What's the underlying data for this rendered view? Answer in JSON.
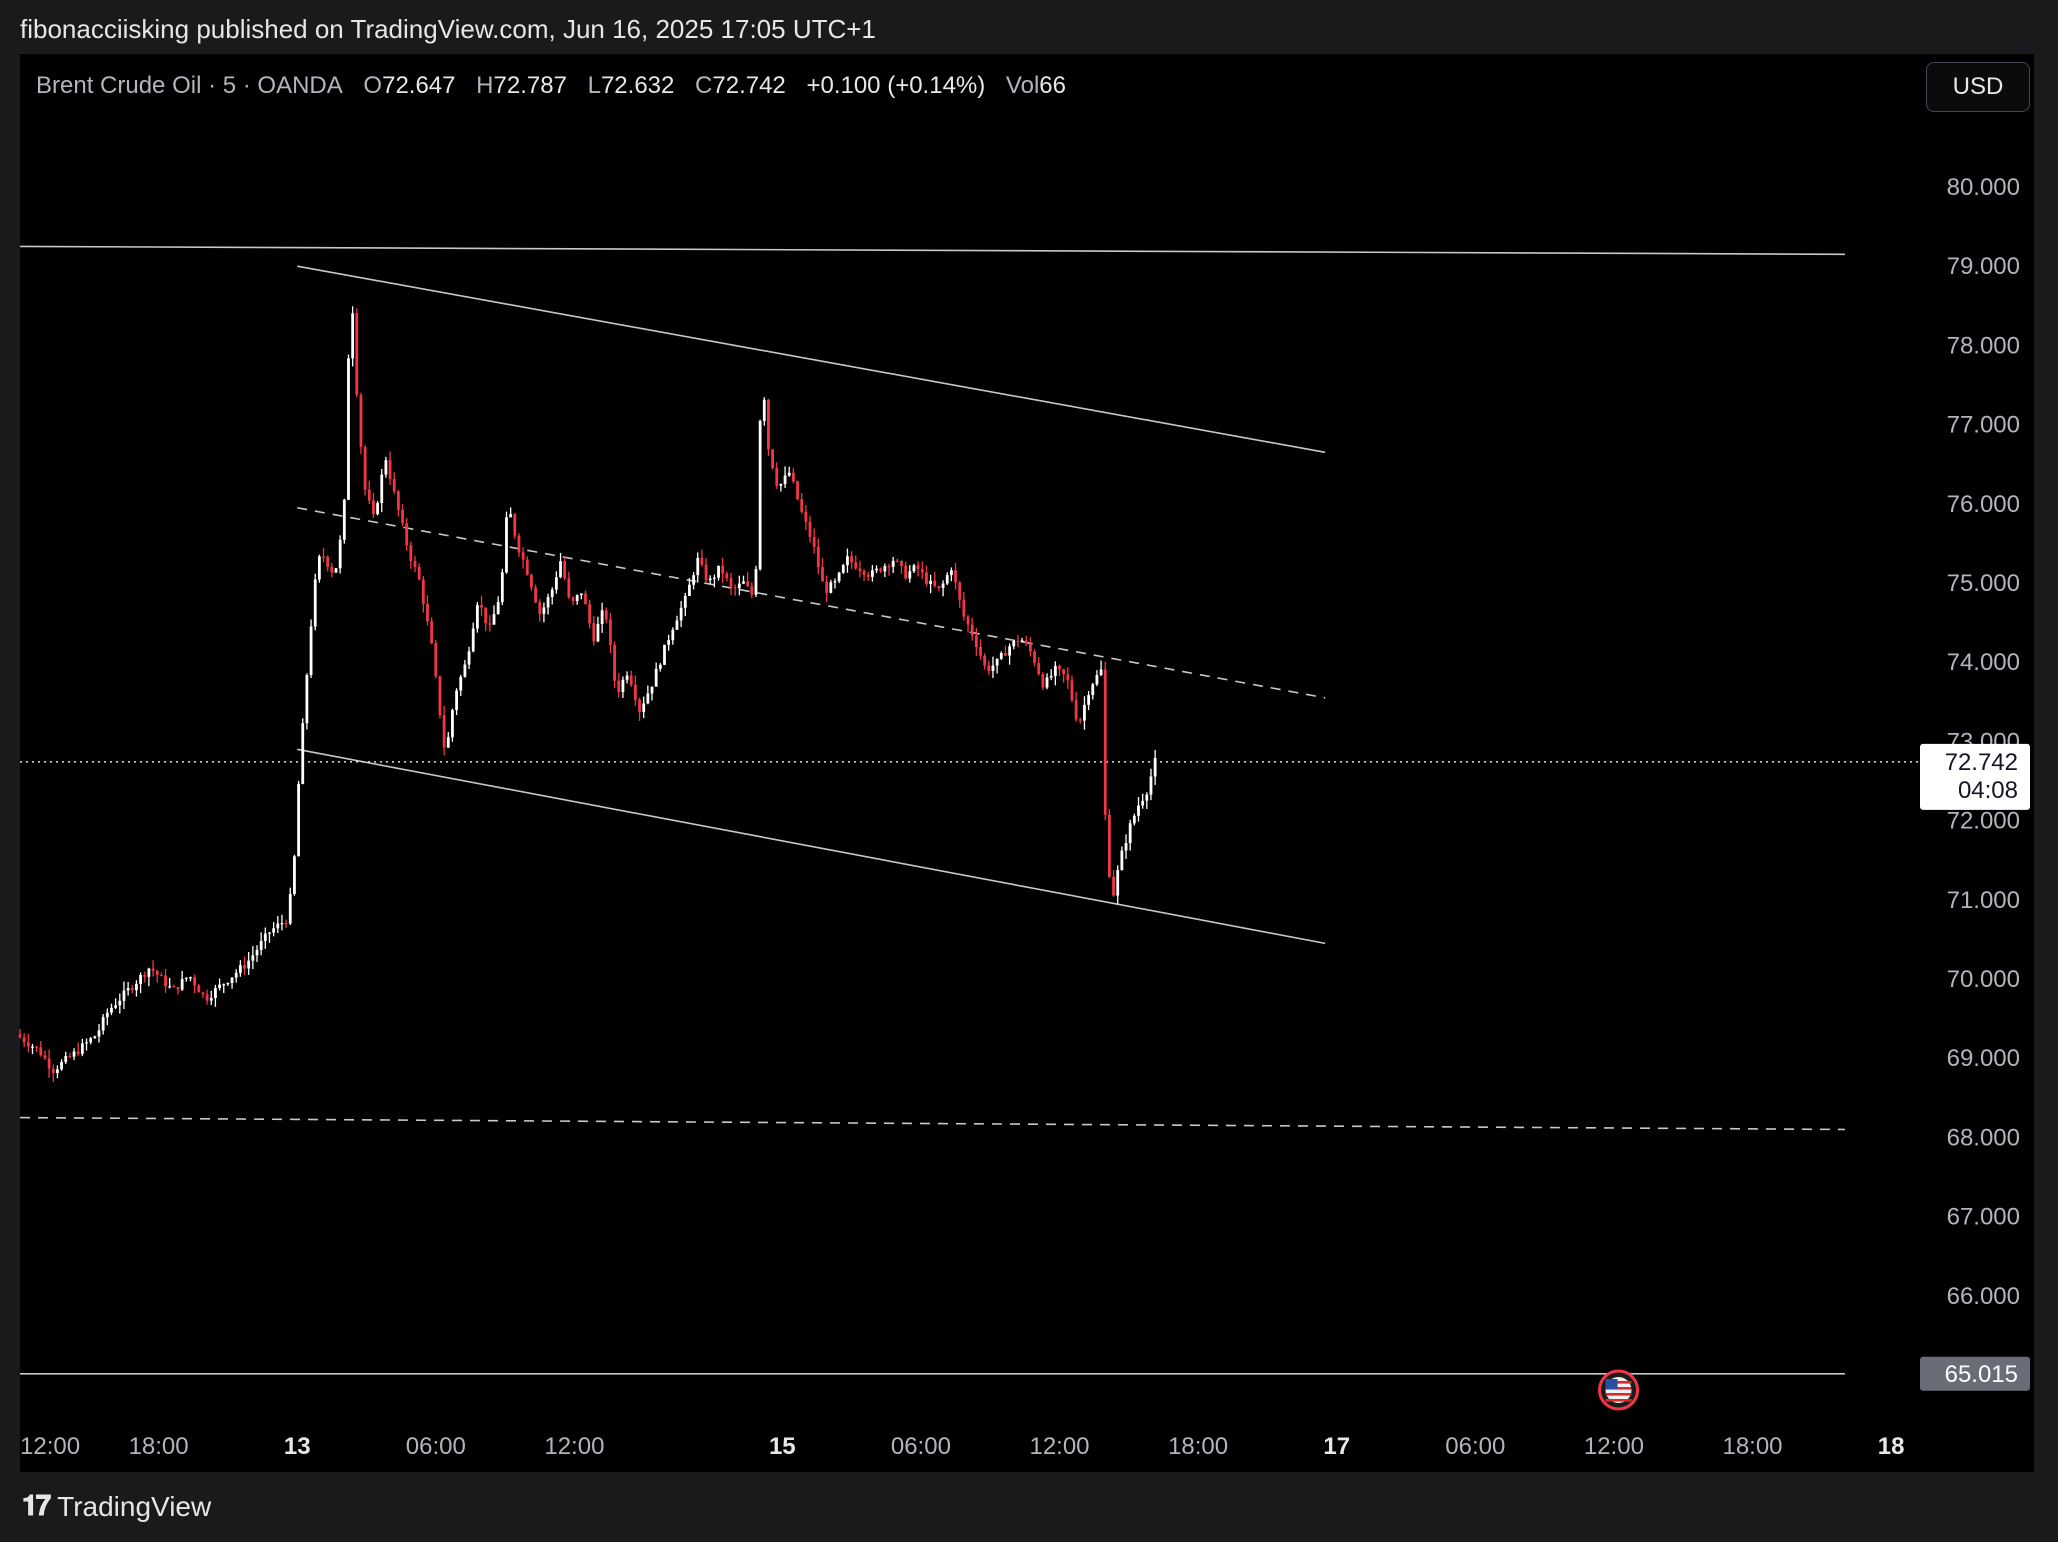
{
  "header": {
    "publish_text": "fibonacciisking published on TradingView.com, Jun 16, 2025 17:05 UTC+1"
  },
  "legend": {
    "symbol": "Brent Crude Oil · 5 · OANDA",
    "open_label": "O",
    "open": "72.647",
    "high_label": "H",
    "high": "72.787",
    "low_label": "L",
    "low": "72.632",
    "close_label": "C",
    "close": "72.742",
    "change": "+0.100 (+0.14%)",
    "vol_label": "Vol",
    "vol": "66"
  },
  "currency_button": "USD",
  "footer": {
    "brand": "TradingView",
    "logo_icon": "tradingview-logo-icon"
  },
  "colors": {
    "up": "#ffffff",
    "down": "#f23645",
    "line": "#c8c8c8",
    "background": "#000000"
  },
  "chart_data": {
    "type": "candlestick",
    "symbol": "Brent Crude Oil",
    "interval": "5",
    "ylim": [
      65.0,
      80.0
    ],
    "y_ticks": [
      "80.000",
      "79.000",
      "78.000",
      "77.000",
      "76.000",
      "75.000",
      "74.000",
      "73.000",
      "72.000",
      "71.000",
      "70.000",
      "69.000",
      "68.000",
      "67.000",
      "66.000"
    ],
    "x_ticks": [
      {
        "label": "12:00",
        "t": 0,
        "bold": false
      },
      {
        "label": "18:00",
        "t": 6,
        "bold": false
      },
      {
        "label": "13",
        "t": 12,
        "bold": true
      },
      {
        "label": "06:00",
        "t": 18,
        "bold": false
      },
      {
        "label": "12:00",
        "t": 24,
        "bold": false
      },
      {
        "label": "15",
        "t": 33,
        "bold": true
      },
      {
        "label": "06:00",
        "t": 39,
        "bold": false
      },
      {
        "label": "12:00",
        "t": 45,
        "bold": false
      },
      {
        "label": "18:00",
        "t": 51,
        "bold": false
      },
      {
        "label": "17",
        "t": 57,
        "bold": true
      },
      {
        "label": "06:00",
        "t": 63,
        "bold": false
      },
      {
        "label": "12:00",
        "t": 69,
        "bold": false
      },
      {
        "label": "18:00",
        "t": 75,
        "bold": false
      },
      {
        "label": "18",
        "t": 81,
        "bold": true
      }
    ],
    "price_path": [
      [
        0,
        69.3
      ],
      [
        1,
        69.1
      ],
      [
        1.6,
        68.85
      ],
      [
        2.5,
        69.05
      ],
      [
        3.5,
        69.3
      ],
      [
        4,
        69.6
      ],
      [
        5,
        69.9
      ],
      [
        5.8,
        70.15
      ],
      [
        6.8,
        69.85
      ],
      [
        7.5,
        70.05
      ],
      [
        8.2,
        69.75
      ],
      [
        9,
        69.95
      ],
      [
        10,
        70.2
      ],
      [
        11,
        70.6
      ],
      [
        11.7,
        70.75
      ],
      [
        12,
        71.2
      ],
      [
        12.2,
        72.3
      ],
      [
        12.5,
        73.5
      ],
      [
        12.9,
        74.9
      ],
      [
        13.2,
        75.4
      ],
      [
        13.8,
        75.1
      ],
      [
        14.2,
        75.8
      ],
      [
        14.5,
        78.9
      ],
      [
        14.8,
        77.2
      ],
      [
        15.1,
        76.2
      ],
      [
        15.5,
        75.8
      ],
      [
        16,
        76.6
      ],
      [
        16.4,
        76.1
      ],
      [
        17,
        75.4
      ],
      [
        17.5,
        75.0
      ],
      [
        18,
        74.2
      ],
      [
        18.6,
        72.8
      ],
      [
        19,
        73.6
      ],
      [
        19.5,
        74.0
      ],
      [
        20,
        74.8
      ],
      [
        20.5,
        74.4
      ],
      [
        21,
        74.9
      ],
      [
        21.3,
        76.0
      ],
      [
        21.7,
        75.5
      ],
      [
        22.2,
        75.1
      ],
      [
        22.7,
        74.6
      ],
      [
        23.2,
        74.9
      ],
      [
        23.6,
        75.3
      ],
      [
        24,
        74.7
      ],
      [
        24.5,
        74.9
      ],
      [
        25,
        74.3
      ],
      [
        25.5,
        74.7
      ],
      [
        26,
        73.6
      ],
      [
        26.5,
        73.9
      ],
      [
        27,
        73.4
      ],
      [
        27.5,
        73.7
      ],
      [
        28,
        74.1
      ],
      [
        28.5,
        74.5
      ],
      [
        29,
        74.8
      ],
      [
        29.5,
        75.3
      ],
      [
        30,
        75.0
      ],
      [
        30.5,
        75.2
      ],
      [
        31,
        74.9
      ],
      [
        31.5,
        75.0
      ],
      [
        32,
        74.8
      ],
      [
        32.3,
        77.9
      ],
      [
        32.5,
        76.8
      ],
      [
        33,
        76.2
      ],
      [
        33.5,
        76.4
      ],
      [
        34,
        75.9
      ],
      [
        34.5,
        75.5
      ],
      [
        35,
        74.9
      ],
      [
        35.5,
        75.0
      ],
      [
        36,
        75.3
      ],
      [
        36.5,
        75.2
      ],
      [
        37,
        75.1
      ],
      [
        37.5,
        75.2
      ],
      [
        38,
        75.3
      ],
      [
        38.5,
        75.1
      ],
      [
        39,
        75.2
      ],
      [
        39.5,
        75.0
      ],
      [
        40,
        74.9
      ],
      [
        40.5,
        75.2
      ],
      [
        41,
        74.6
      ],
      [
        41.5,
        74.3
      ],
      [
        42,
        73.9
      ],
      [
        42.5,
        74.0
      ],
      [
        43,
        74.2
      ],
      [
        43.5,
        74.3
      ],
      [
        44,
        74.1
      ],
      [
        44.5,
        73.7
      ],
      [
        45,
        73.9
      ],
      [
        45.5,
        73.8
      ],
      [
        46,
        73.2
      ],
      [
        46.5,
        73.7
      ],
      [
        47,
        73.9
      ],
      [
        47.2,
        71.6
      ],
      [
        47.5,
        71.05
      ],
      [
        47.8,
        71.5
      ],
      [
        48.2,
        71.9
      ],
      [
        48.6,
        72.2
      ],
      [
        49,
        72.4
      ],
      [
        49.3,
        72.742
      ]
    ],
    "drawings": [
      {
        "name": "resistance-line",
        "style": "solid",
        "p1": [
          0,
          79.25
        ],
        "p2": [
          79,
          79.15
        ]
      },
      {
        "name": "channel-upper",
        "style": "solid",
        "p1": [
          12,
          79.0
        ],
        "p2": [
          56.5,
          76.65
        ]
      },
      {
        "name": "channel-mid",
        "style": "dashed",
        "p1": [
          12,
          75.95
        ],
        "p2": [
          56.5,
          73.55
        ]
      },
      {
        "name": "channel-lower",
        "style": "solid",
        "p1": [
          12,
          72.9
        ],
        "p2": [
          56.5,
          70.45
        ]
      },
      {
        "name": "support-line",
        "style": "dashed",
        "p1": [
          0,
          68.25
        ],
        "p2": [
          79,
          68.1
        ]
      },
      {
        "name": "low-line",
        "style": "solid",
        "p1": [
          0,
          65.015
        ],
        "p2": [
          79,
          65.015
        ]
      }
    ],
    "current_price": "72.742",
    "countdown": "04:08",
    "level_label": "65.015",
    "event_icon": "us-flag-icon",
    "event_t": 69.2
  }
}
